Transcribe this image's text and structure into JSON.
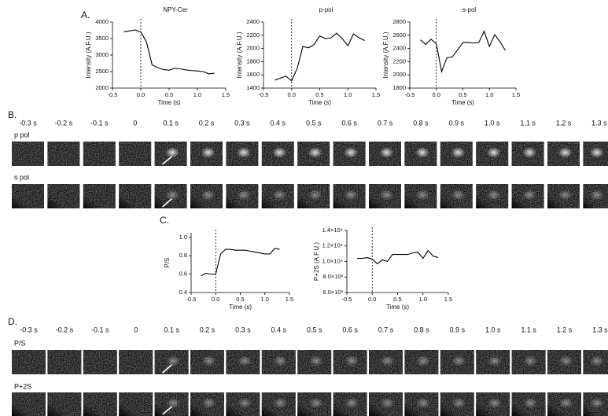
{
  "panel_labels": [
    "A.",
    "B.",
    "C.",
    "D."
  ],
  "chart_data": [
    {
      "type": "line",
      "title": "NPY-Cer",
      "x_label": "Time (s)",
      "y_label": "Intensity (A.F.U.)",
      "x": [
        -0.3,
        -0.2,
        -0.1,
        0,
        0.1,
        0.2,
        0.3,
        0.4,
        0.5,
        0.6,
        0.7,
        0.8,
        0.9,
        1,
        1.1,
        1.2,
        1.3
      ],
      "values": [
        3700,
        3730,
        3760,
        3700,
        3400,
        2700,
        2620,
        2560,
        2540,
        2600,
        2580,
        2550,
        2530,
        2520,
        2500,
        2430,
        2450
      ],
      "color": "#000000",
      "vline": 0,
      "xlim": [
        -0.5,
        1.5
      ],
      "xticks": [
        -0.5,
        {
          "value": 0,
          "label": "0.0"
        },
        0.5,
        {
          "value": 1,
          "label": "1.0"
        },
        1.5
      ],
      "ylim": [
        2000,
        4000
      ],
      "yticks": [
        2000,
        2500,
        3000,
        3500,
        4000
      ]
    },
    {
      "type": "line",
      "title": "p-pol",
      "x_label": "Time (s)",
      "y_label": "Intensity (A.F.U.)",
      "x": [
        -0.3,
        -0.2,
        -0.1,
        0,
        0.1,
        0.2,
        0.3,
        0.4,
        0.5,
        0.6,
        0.7,
        0.8,
        0.9,
        1,
        1.1,
        1.2,
        1.3
      ],
      "values": [
        1520,
        1550,
        1580,
        1510,
        1700,
        2030,
        2010,
        2060,
        2190,
        2150,
        2160,
        2230,
        2150,
        2040,
        2220,
        2160,
        2120
      ],
      "color": "#000000",
      "vline": 0,
      "xlim": [
        -0.5,
        1.5
      ],
      "xticks": [
        -0.5,
        {
          "value": 0,
          "label": "0.0"
        },
        0.5,
        {
          "value": 1,
          "label": "1.0"
        },
        1.5
      ],
      "ylim": [
        1400,
        2400
      ],
      "yticks": [
        1400,
        1600,
        1800,
        2000,
        2200,
        2400
      ]
    },
    {
      "type": "line",
      "title": "s-pol",
      "x_label": "Time (s)",
      "y_label": "Intensity (A.F.U.)",
      "x": [
        -0.3,
        -0.2,
        -0.1,
        0,
        0.1,
        0.2,
        0.3,
        0.4,
        0.5,
        0.6,
        0.7,
        0.8,
        0.9,
        1,
        1.1,
        1.2,
        1.3
      ],
      "values": [
        2530,
        2460,
        2540,
        2470,
        2050,
        2260,
        2270,
        2380,
        2490,
        2490,
        2480,
        2490,
        2660,
        2430,
        2610,
        2500,
        2370
      ],
      "color": "#000000",
      "vline": 0,
      "xlim": [
        -0.5,
        1.5
      ],
      "xticks": [
        -0.5,
        {
          "value": 0,
          "label": "0.0"
        },
        0.5,
        {
          "value": 1,
          "label": "1.0"
        },
        1.5
      ],
      "ylim": [
        1800,
        2800
      ],
      "yticks": [
        1800,
        2000,
        2200,
        2400,
        2600,
        2800
      ]
    },
    {
      "type": "line",
      "x_label": "Time (s)",
      "y_label": "P/S",
      "x": [
        -0.3,
        -0.2,
        -0.1,
        0,
        0.1,
        0.2,
        0.3,
        0.4,
        0.5,
        0.6,
        0.7,
        0.8,
        0.9,
        1,
        1.1,
        1.2,
        1.3
      ],
      "values": [
        0.58,
        0.61,
        0.6,
        0.6,
        0.82,
        0.87,
        0.87,
        0.86,
        0.86,
        0.86,
        0.85,
        0.84,
        0.83,
        0.82,
        0.82,
        0.88,
        0.87
      ],
      "color": "#000000",
      "vline": 0,
      "xlim": [
        -0.5,
        1.5
      ],
      "xticks": [
        -0.5,
        {
          "value": 0,
          "label": "0.0"
        },
        0.5,
        {
          "value": 1,
          "label": "1.0"
        },
        1.5
      ],
      "ylim": [
        0.4,
        1.05
      ],
      "yticks": [
        0.4,
        0.6,
        0.8,
        {
          "value": 1,
          "label": "1.0"
        }
      ]
    },
    {
      "type": "line",
      "x_label": "Time (s)",
      "y_label": "P+2S  (A.F.U.)",
      "x": [
        -0.3,
        -0.2,
        -0.1,
        0,
        0.1,
        0.2,
        0.3,
        0.4,
        0.5,
        0.6,
        0.7,
        0.8,
        0.9,
        1,
        1.1,
        1.2,
        1.3
      ],
      "values": [
        10400,
        10400,
        10500,
        10300,
        9700,
        10200,
        10000,
        10900,
        10900,
        10900,
        10900,
        11100,
        11200,
        10400,
        11400,
        10700,
        10500
      ],
      "color": "#000000",
      "vline": 0,
      "xlim": [
        -0.5,
        1.5
      ],
      "xticks": [
        -0.5,
        {
          "value": 0,
          "label": "0.0"
        },
        0.5,
        {
          "value": 1,
          "label": "1.0"
        },
        1.5
      ],
      "ylim": [
        6000,
        14000
      ],
      "yticks": [
        {
          "value": 6000,
          "label": "6.0×10³"
        },
        {
          "value": 8000,
          "label": "8.0×10³"
        },
        {
          "value": 10000,
          "label": "1.0×10⁴"
        },
        {
          "value": 12000,
          "label": "1.2×10⁴"
        },
        {
          "value": 14000,
          "label": "1.4×10⁴"
        }
      ]
    }
  ],
  "strip_b": {
    "times": [
      "-0.3 s",
      "-0.2 s",
      "-0.1 s",
      "0",
      "0.1 s",
      "0.2 s",
      "0.3 s",
      "0.4 s",
      "0.5 s",
      "0.6 s",
      "0.7 s",
      "0.8 s",
      "0.9 s",
      "1.0 s",
      "1.1 s",
      "1.2 s",
      "1.3 s"
    ],
    "rows": [
      "p pol",
      "s pol"
    ]
  },
  "strip_d": {
    "times": [
      "-0.3 s",
      "-0.2 s",
      "-0.1 s",
      "0",
      "0.1 s",
      "0.2 s",
      "0.3 s",
      "0.4 s",
      "0.5 s",
      "0.6 s",
      "0.7 s",
      "0.8 s",
      "0.9 s",
      "1.0 s",
      "1.1 s",
      "1.2 s",
      "1.3 s"
    ],
    "rows": [
      "P/S",
      "P+2S"
    ]
  }
}
